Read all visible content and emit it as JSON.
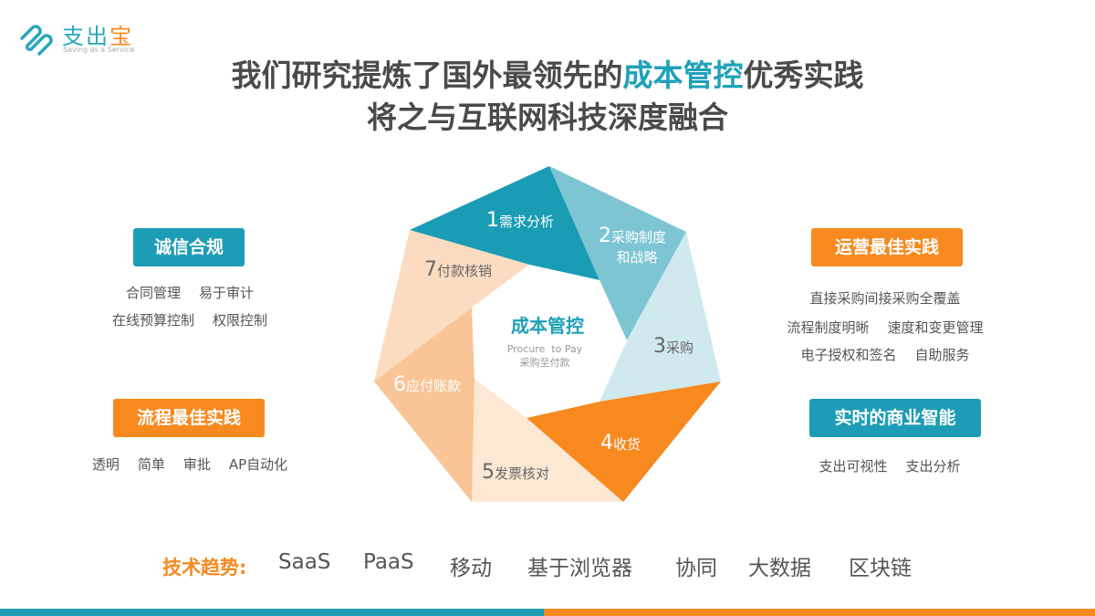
{
  "logo": {
    "name_part1": "支出",
    "name_part2": "宝",
    "tagline": "Saving as a Service"
  },
  "title": {
    "line1_before": "我们研究提炼了国外最领先的",
    "line1_highlight": "成本管控",
    "line1_after": "优秀实践",
    "line2": "将之与互联网科技深度融合"
  },
  "left": {
    "integrity": {
      "badge": "诚信合规",
      "rows": [
        [
          "合同管理",
          "易于审计"
        ],
        [
          "在线预算控制",
          "权限控制"
        ]
      ]
    },
    "process": {
      "badge": "流程最佳实践",
      "items": [
        "透明",
        "简单",
        "审批",
        "AP自动化"
      ]
    }
  },
  "right": {
    "operations": {
      "badge": "运营最佳实践",
      "rows": [
        [
          "直接采购间接采购全覆盖"
        ],
        [
          "流程制度明晰",
          "速度和变更管理"
        ],
        [
          "电子授权和签名",
          "自助服务"
        ]
      ]
    },
    "bi": {
      "badge": "实时的商业智能",
      "items": [
        "支出可视性",
        "支出分析"
      ]
    }
  },
  "cycle": {
    "center_title": "成本管控",
    "center_en": "Procure  to Pay",
    "center_cn": "采购至付款",
    "steps": [
      {
        "num": "1",
        "label": "需求分析",
        "color": "#1a9cb5",
        "text_color": "#ffffff"
      },
      {
        "num": "2",
        "label": "采购制度",
        "label2": "和战略",
        "color": "#7ec5d4",
        "text_color": "#ffffff"
      },
      {
        "num": "3",
        "label": "采购",
        "color": "#cfe9ef",
        "text_color": "#666666"
      },
      {
        "num": "4",
        "label": "收货",
        "color": "#f7891f",
        "text_color": "#ffffff"
      },
      {
        "num": "5",
        "label": "发票核对",
        "color": "#fde8d4",
        "text_color": "#666666"
      },
      {
        "num": "6",
        "label": "应付账款",
        "color": "#f9c596",
        "text_color": "#ffffff"
      },
      {
        "num": "7",
        "label": "付款核销",
        "color": "#fbdcc0",
        "text_color": "#666666"
      }
    ]
  },
  "tech": {
    "label": "技术趋势:",
    "items": [
      "SaaS",
      "PaaS",
      "移动",
      "基于浏览器",
      "协同",
      "大数据",
      "区块链"
    ]
  },
  "colors": {
    "teal": "#1d9db5",
    "orange": "#f7891f"
  }
}
